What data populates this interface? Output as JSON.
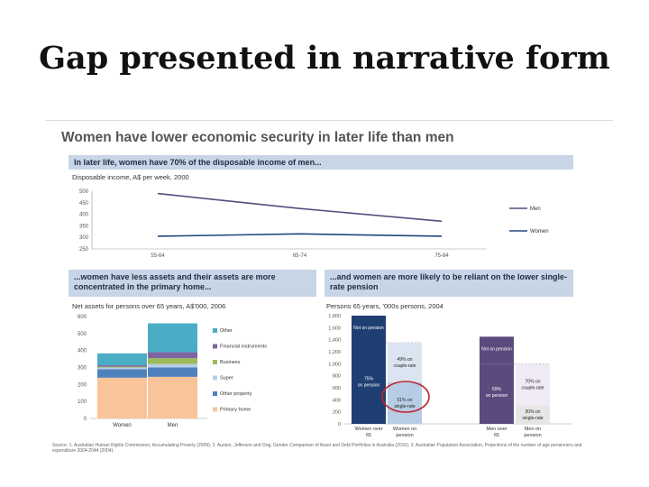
{
  "slide_title": "Gap presented in narrative form",
  "colors": {
    "band": "#c7d5e6",
    "men_line": "#5c4a7e",
    "women_line": "#1f497d",
    "navy": "#1f3f73",
    "purple": "#5c4a7e"
  },
  "panel": {
    "heading": "Women have lower economic security in later life than men",
    "source": "Source: 1. Australian Human Rights Commission, Accumulating Poverty (2009); 2. Austen, Jefferson and Ong, Gender Comparison of Asset and Debt Portfolios in Australia (2010); 3. Australian Population Association, Projections of the number of age pensioners and expenditure 2004-2044 (2004)."
  },
  "chart_data": [
    {
      "type": "line",
      "banner": "In later life, women have 70% of the disposable income of men...",
      "subtitle": "Disposable income, A$ per week, 2000",
      "categories": [
        "55-64",
        "65-74",
        "75-84"
      ],
      "ylim": [
        250,
        500
      ],
      "yticks": [
        250,
        300,
        350,
        400,
        450,
        500
      ],
      "legend_placement": "right",
      "series": [
        {
          "name": "Men",
          "values": [
            490,
            425,
            370
          ]
        },
        {
          "name": "Women",
          "values": [
            305,
            315,
            305
          ]
        }
      ]
    },
    {
      "type": "bar",
      "stacked": true,
      "banner": "...women have less assets and their assets are more concentrated in the primary home...",
      "subtitle": "Net assets for persons over 65 years, A$'000, 2006",
      "categories": [
        "Women",
        "Men"
      ],
      "ylim": [
        0,
        600
      ],
      "yticks": [
        0,
        100,
        200,
        300,
        400,
        500,
        600
      ],
      "series": [
        {
          "name": "Primary home",
          "color": "#f9c499",
          "values": [
            240,
            245
          ]
        },
        {
          "name": "Other property",
          "color": "#4f81bd",
          "values": [
            50,
            55
          ]
        },
        {
          "name": "Super",
          "color": "#b7cde6",
          "values": [
            10,
            20
          ]
        },
        {
          "name": "Business",
          "color": "#9bbb59",
          "values": [
            5,
            35
          ]
        },
        {
          "name": "Financial instruments",
          "color": "#8064a2",
          "values": [
            8,
            35
          ]
        },
        {
          "name": "Other",
          "color": "#4bacc6",
          "values": [
            70,
            170
          ]
        }
      ],
      "legend_order": [
        "Other",
        "Financial instruments",
        "Business",
        "Super",
        "Other property",
        "Primary home"
      ]
    },
    {
      "type": "bar",
      "stacked": true,
      "banner": "...and women are more likely to be reliant on the lower single-rate pension",
      "subtitle": "Persons 65 years, '000s persons, 2004",
      "ylim": [
        0,
        1800
      ],
      "yticks": [
        0,
        200,
        400,
        600,
        800,
        1000,
        1200,
        1400,
        1600,
        1800
      ],
      "groups": [
        {
          "categories": [
            "Women over 65",
            "Women on pension"
          ],
          "bar1": [
            {
              "label": "75% on pension",
              "value": 1350,
              "color": "#1f3f73"
            },
            {
              "label": "Not on pension",
              "value": 450,
              "color": "#1f3f73"
            }
          ],
          "bar2": [
            {
              "label": "51% on single-rate",
              "value": 690,
              "color": "#b7cde6"
            },
            {
              "label": "49% on couple-rate",
              "value": 660,
              "color": "#dbe5f1"
            }
          ]
        },
        {
          "categories": [
            "Men over 65",
            "Men on pension"
          ],
          "bar1": [
            {
              "label": "69% on pension",
              "value": 1000,
              "color": "#5c4a7e"
            },
            {
              "label": "Not on pension",
              "value": 450,
              "color": "#5c4a7e"
            }
          ],
          "bar2": [
            {
              "label": "30% on single-rate",
              "value": 300,
              "color": "#e6e6e6"
            },
            {
              "label": "70% on couple-rate",
              "value": 700,
              "color": "#efeaf4"
            }
          ]
        }
      ]
    }
  ]
}
